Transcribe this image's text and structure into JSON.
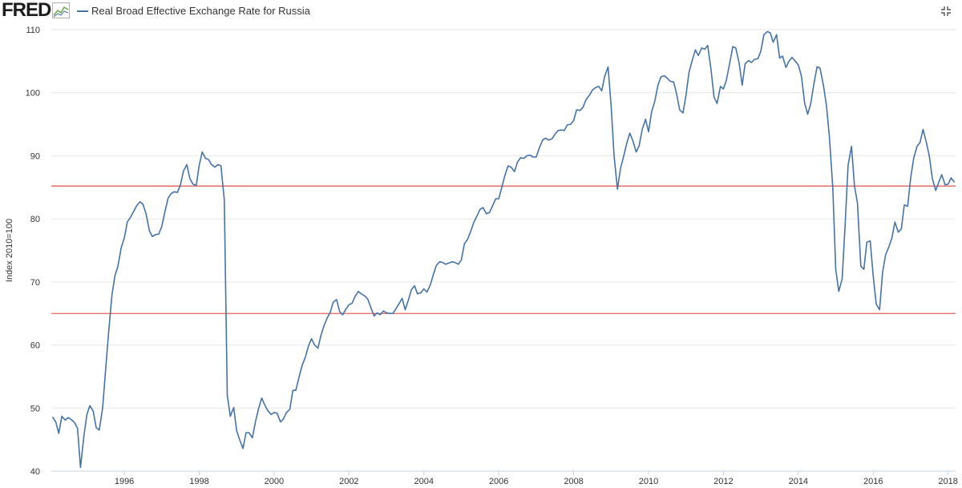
{
  "header": {
    "logo_text": "FRED",
    "series_title": "Real Broad Effective Exchange Rate for Russia"
  },
  "icons": {
    "logo_graph": "fred-logo-graph-icon",
    "expand": "expand-icon",
    "legend_swatch": "legend-line-swatch-icon"
  },
  "colors": {
    "series_line": "#4572a7",
    "reference_lines": "#e0605a",
    "grid": "#e6e6e6"
  },
  "chart_data": {
    "type": "line",
    "title": "Real Broad Effective Exchange Rate for Russia",
    "ylabel": "Index 2010=100",
    "xlabel": "",
    "xlim": [
      1994.05,
      2018.2
    ],
    "ylim": [
      40,
      110
    ],
    "x_ticks": [
      1996,
      1998,
      2000,
      2002,
      2004,
      2006,
      2008,
      2010,
      2012,
      2014,
      2016,
      2018
    ],
    "x_tick_labels": [
      "1996",
      "1998",
      "2000",
      "2002",
      "2004",
      "2006",
      "2008",
      "2010",
      "2012",
      "2014",
      "2016",
      "2018"
    ],
    "y_ticks": [
      40,
      50,
      60,
      70,
      80,
      90,
      100,
      110
    ],
    "y_tick_labels": [
      "40",
      "50",
      "60",
      "70",
      "80",
      "90",
      "100",
      "110"
    ],
    "grid": "horizontal",
    "legend": "top-left",
    "reference_lines": [
      85.2,
      65.0
    ],
    "series": [
      {
        "name": "Real Broad Effective Exchange Rate for Russia",
        "points": [
          [
            1994.08,
            48.6
          ],
          [
            1994.17,
            47.8
          ],
          [
            1994.25,
            46.0
          ],
          [
            1994.33,
            48.7
          ],
          [
            1994.42,
            48.1
          ],
          [
            1994.5,
            48.5
          ],
          [
            1994.58,
            48.2
          ],
          [
            1994.67,
            47.7
          ],
          [
            1994.75,
            46.8
          ],
          [
            1994.83,
            40.6
          ],
          [
            1994.92,
            45.5
          ],
          [
            1995.0,
            49.0
          ],
          [
            1995.08,
            50.4
          ],
          [
            1995.17,
            49.5
          ],
          [
            1995.25,
            46.9
          ],
          [
            1995.33,
            46.5
          ],
          [
            1995.42,
            50.0
          ],
          [
            1995.5,
            56.0
          ],
          [
            1995.58,
            62.0
          ],
          [
            1995.67,
            68.0
          ],
          [
            1995.75,
            71.0
          ],
          [
            1995.83,
            72.5
          ],
          [
            1995.92,
            75.5
          ],
          [
            1996.0,
            77.0
          ],
          [
            1996.08,
            79.5
          ],
          [
            1996.17,
            80.3
          ],
          [
            1996.25,
            81.2
          ],
          [
            1996.33,
            82.1
          ],
          [
            1996.42,
            82.7
          ],
          [
            1996.5,
            82.3
          ],
          [
            1996.58,
            80.8
          ],
          [
            1996.67,
            78.1
          ],
          [
            1996.75,
            77.2
          ],
          [
            1996.83,
            77.5
          ],
          [
            1996.92,
            77.6
          ],
          [
            1997.0,
            78.8
          ],
          [
            1997.08,
            81.0
          ],
          [
            1997.17,
            83.3
          ],
          [
            1997.25,
            84.0
          ],
          [
            1997.33,
            84.3
          ],
          [
            1997.42,
            84.2
          ],
          [
            1997.5,
            85.4
          ],
          [
            1997.58,
            87.6
          ],
          [
            1997.67,
            88.6
          ],
          [
            1997.75,
            86.4
          ],
          [
            1997.83,
            85.5
          ],
          [
            1997.92,
            85.3
          ],
          [
            1998.0,
            88.5
          ],
          [
            1998.08,
            90.6
          ],
          [
            1998.17,
            89.6
          ],
          [
            1998.25,
            89.4
          ],
          [
            1998.33,
            88.6
          ],
          [
            1998.42,
            88.2
          ],
          [
            1998.5,
            88.6
          ],
          [
            1998.58,
            88.4
          ],
          [
            1998.67,
            83.0
          ],
          [
            1998.75,
            52.0
          ],
          [
            1998.83,
            48.7
          ],
          [
            1998.92,
            50.1
          ],
          [
            1999.0,
            46.4
          ],
          [
            1999.08,
            45.0
          ],
          [
            1999.17,
            43.6
          ],
          [
            1999.25,
            46.1
          ],
          [
            1999.33,
            46.1
          ],
          [
            1999.42,
            45.3
          ],
          [
            1999.5,
            47.8
          ],
          [
            1999.58,
            49.8
          ],
          [
            1999.67,
            51.6
          ],
          [
            1999.75,
            50.5
          ],
          [
            1999.83,
            49.6
          ],
          [
            1999.92,
            49.0
          ],
          [
            2000.0,
            49.3
          ],
          [
            2000.08,
            49.2
          ],
          [
            2000.17,
            47.8
          ],
          [
            2000.25,
            48.3
          ],
          [
            2000.33,
            49.3
          ],
          [
            2000.42,
            49.8
          ],
          [
            2000.5,
            52.8
          ],
          [
            2000.58,
            52.8
          ],
          [
            2000.67,
            55.0
          ],
          [
            2000.75,
            56.8
          ],
          [
            2000.83,
            58.0
          ],
          [
            2000.92,
            59.9
          ],
          [
            2001.0,
            61.0
          ],
          [
            2001.08,
            60.0
          ],
          [
            2001.17,
            59.5
          ],
          [
            2001.25,
            61.5
          ],
          [
            2001.33,
            63.0
          ],
          [
            2001.42,
            64.3
          ],
          [
            2001.5,
            65.2
          ],
          [
            2001.58,
            66.8
          ],
          [
            2001.67,
            67.2
          ],
          [
            2001.75,
            65.3
          ],
          [
            2001.83,
            64.8
          ],
          [
            2001.92,
            65.7
          ],
          [
            2002.0,
            66.4
          ],
          [
            2002.08,
            66.6
          ],
          [
            2002.17,
            67.8
          ],
          [
            2002.25,
            68.5
          ],
          [
            2002.33,
            68.1
          ],
          [
            2002.42,
            67.8
          ],
          [
            2002.5,
            67.3
          ],
          [
            2002.58,
            66.0
          ],
          [
            2002.67,
            64.6
          ],
          [
            2002.75,
            65.1
          ],
          [
            2002.83,
            64.8
          ],
          [
            2002.92,
            65.4
          ],
          [
            2003.0,
            65.1
          ],
          [
            2003.08,
            65.0
          ],
          [
            2003.17,
            65.0
          ],
          [
            2003.25,
            65.7
          ],
          [
            2003.33,
            66.5
          ],
          [
            2003.42,
            67.4
          ],
          [
            2003.5,
            65.6
          ],
          [
            2003.58,
            67.0
          ],
          [
            2003.67,
            68.8
          ],
          [
            2003.75,
            69.4
          ],
          [
            2003.83,
            68.1
          ],
          [
            2003.92,
            68.3
          ],
          [
            2004.0,
            68.9
          ],
          [
            2004.08,
            68.4
          ],
          [
            2004.17,
            69.5
          ],
          [
            2004.25,
            71.1
          ],
          [
            2004.33,
            72.6
          ],
          [
            2004.42,
            73.2
          ],
          [
            2004.5,
            73.1
          ],
          [
            2004.58,
            72.8
          ],
          [
            2004.67,
            73.0
          ],
          [
            2004.75,
            73.2
          ],
          [
            2004.83,
            73.1
          ],
          [
            2004.92,
            72.8
          ],
          [
            2005.0,
            73.5
          ],
          [
            2005.08,
            76.0
          ],
          [
            2005.17,
            76.8
          ],
          [
            2005.25,
            78.0
          ],
          [
            2005.33,
            79.4
          ],
          [
            2005.42,
            80.5
          ],
          [
            2005.5,
            81.5
          ],
          [
            2005.58,
            81.8
          ],
          [
            2005.67,
            80.8
          ],
          [
            2005.75,
            81.0
          ],
          [
            2005.83,
            82.0
          ],
          [
            2005.92,
            83.2
          ],
          [
            2006.0,
            83.2
          ],
          [
            2006.08,
            85.0
          ],
          [
            2006.17,
            87.0
          ],
          [
            2006.25,
            88.4
          ],
          [
            2006.33,
            88.2
          ],
          [
            2006.42,
            87.5
          ],
          [
            2006.5,
            89.0
          ],
          [
            2006.58,
            89.7
          ],
          [
            2006.67,
            89.6
          ],
          [
            2006.75,
            90.0
          ],
          [
            2006.83,
            90.1
          ],
          [
            2006.92,
            89.8
          ],
          [
            2007.0,
            89.8
          ],
          [
            2007.08,
            91.2
          ],
          [
            2007.17,
            92.5
          ],
          [
            2007.25,
            92.8
          ],
          [
            2007.33,
            92.5
          ],
          [
            2007.42,
            92.7
          ],
          [
            2007.5,
            93.4
          ],
          [
            2007.58,
            94.0
          ],
          [
            2007.67,
            94.1
          ],
          [
            2007.75,
            94.0
          ],
          [
            2007.83,
            94.9
          ],
          [
            2007.92,
            95.0
          ],
          [
            2008.0,
            95.6
          ],
          [
            2008.08,
            97.3
          ],
          [
            2008.17,
            97.2
          ],
          [
            2008.25,
            97.7
          ],
          [
            2008.33,
            98.9
          ],
          [
            2008.42,
            99.6
          ],
          [
            2008.5,
            100.4
          ],
          [
            2008.58,
            100.8
          ],
          [
            2008.67,
            101.0
          ],
          [
            2008.75,
            100.3
          ],
          [
            2008.83,
            102.6
          ],
          [
            2008.92,
            104.1
          ],
          [
            2009.0,
            98.0
          ],
          [
            2009.08,
            90.0
          ],
          [
            2009.17,
            84.7
          ],
          [
            2009.25,
            88.0
          ],
          [
            2009.33,
            89.8
          ],
          [
            2009.42,
            92.0
          ],
          [
            2009.5,
            93.6
          ],
          [
            2009.58,
            92.4
          ],
          [
            2009.67,
            90.6
          ],
          [
            2009.75,
            91.6
          ],
          [
            2009.83,
            94.2
          ],
          [
            2009.92,
            95.8
          ],
          [
            2010.0,
            93.8
          ],
          [
            2010.08,
            96.9
          ],
          [
            2010.17,
            98.7
          ],
          [
            2010.25,
            101.2
          ],
          [
            2010.33,
            102.5
          ],
          [
            2010.42,
            102.7
          ],
          [
            2010.5,
            102.3
          ],
          [
            2010.58,
            101.8
          ],
          [
            2010.67,
            101.7
          ],
          [
            2010.75,
            99.8
          ],
          [
            2010.83,
            97.3
          ],
          [
            2010.92,
            96.8
          ],
          [
            2011.0,
            99.6
          ],
          [
            2011.08,
            103.2
          ],
          [
            2011.17,
            105.2
          ],
          [
            2011.25,
            106.8
          ],
          [
            2011.33,
            105.9
          ],
          [
            2011.42,
            107.1
          ],
          [
            2011.5,
            106.9
          ],
          [
            2011.58,
            107.5
          ],
          [
            2011.67,
            103.6
          ],
          [
            2011.75,
            99.3
          ],
          [
            2011.83,
            98.3
          ],
          [
            2011.92,
            101.0
          ],
          [
            2012.0,
            100.6
          ],
          [
            2012.08,
            102.0
          ],
          [
            2012.17,
            104.8
          ],
          [
            2012.25,
            107.3
          ],
          [
            2012.33,
            107.1
          ],
          [
            2012.42,
            104.7
          ],
          [
            2012.5,
            101.2
          ],
          [
            2012.58,
            104.6
          ],
          [
            2012.67,
            105.1
          ],
          [
            2012.75,
            104.8
          ],
          [
            2012.83,
            105.3
          ],
          [
            2012.92,
            105.4
          ],
          [
            2013.0,
            106.6
          ],
          [
            2013.08,
            109.2
          ],
          [
            2013.17,
            109.7
          ],
          [
            2013.25,
            109.5
          ],
          [
            2013.33,
            108.0
          ],
          [
            2013.42,
            109.2
          ],
          [
            2013.5,
            105.5
          ],
          [
            2013.58,
            105.8
          ],
          [
            2013.67,
            104.0
          ],
          [
            2013.75,
            105.0
          ],
          [
            2013.83,
            105.6
          ],
          [
            2013.92,
            105.0
          ],
          [
            2014.0,
            104.4
          ],
          [
            2014.08,
            102.7
          ],
          [
            2014.17,
            98.3
          ],
          [
            2014.25,
            96.6
          ],
          [
            2014.33,
            98.2
          ],
          [
            2014.42,
            101.5
          ],
          [
            2014.5,
            104.1
          ],
          [
            2014.58,
            103.9
          ],
          [
            2014.67,
            101.2
          ],
          [
            2014.75,
            98.0
          ],
          [
            2014.83,
            93.0
          ],
          [
            2014.92,
            85.0
          ],
          [
            2015.0,
            72.0
          ],
          [
            2015.08,
            68.5
          ],
          [
            2015.17,
            70.5
          ],
          [
            2015.25,
            79.0
          ],
          [
            2015.33,
            88.5
          ],
          [
            2015.42,
            91.5
          ],
          [
            2015.5,
            85.2
          ],
          [
            2015.58,
            82.5
          ],
          [
            2015.67,
            72.5
          ],
          [
            2015.75,
            72.0
          ],
          [
            2015.83,
            76.3
          ],
          [
            2015.92,
            76.5
          ],
          [
            2016.0,
            71.0
          ],
          [
            2016.08,
            66.5
          ],
          [
            2016.17,
            65.6
          ],
          [
            2016.25,
            71.5
          ],
          [
            2016.33,
            74.3
          ],
          [
            2016.42,
            75.6
          ],
          [
            2016.5,
            77.0
          ],
          [
            2016.58,
            79.5
          ],
          [
            2016.67,
            77.9
          ],
          [
            2016.75,
            78.4
          ],
          [
            2016.83,
            82.2
          ],
          [
            2016.92,
            82.0
          ],
          [
            2017.0,
            86.5
          ],
          [
            2017.08,
            89.6
          ],
          [
            2017.17,
            91.5
          ],
          [
            2017.25,
            92.1
          ],
          [
            2017.33,
            94.2
          ],
          [
            2017.42,
            92.1
          ],
          [
            2017.5,
            89.9
          ],
          [
            2017.58,
            86.4
          ],
          [
            2017.67,
            84.5
          ],
          [
            2017.75,
            85.8
          ],
          [
            2017.83,
            87.0
          ],
          [
            2017.92,
            85.4
          ],
          [
            2018.0,
            85.5
          ],
          [
            2018.08,
            86.5
          ],
          [
            2018.17,
            85.8
          ]
        ]
      }
    ]
  }
}
